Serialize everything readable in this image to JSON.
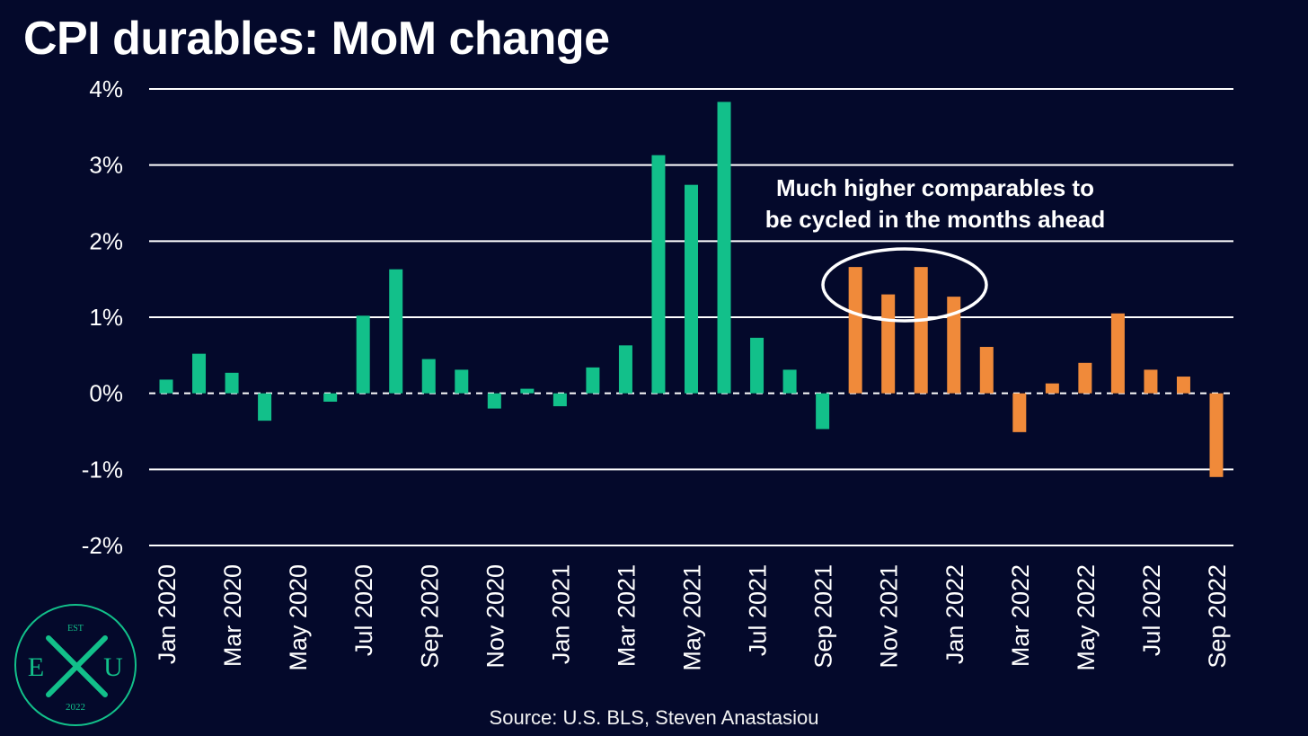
{
  "title": "CPI durables: MoM change",
  "source": "Source: U.S. BLS, Steven Anastasiou",
  "annotation": {
    "line1": "Much higher comparables to",
    "line2": "be cycled in the months ahead"
  },
  "logo": {
    "top": "EST",
    "left": "E",
    "right": "U",
    "bottom": "2022",
    "mark": "x-mark-icon"
  },
  "colors": {
    "background": "#04092b",
    "green": "#12c08a",
    "orange": "#f08a3a",
    "grid": "#ffffff",
    "text": "#ffffff"
  },
  "chart_data": {
    "type": "bar",
    "categories": [
      "Jan 2020",
      "Feb 2020",
      "Mar 2020",
      "Apr 2020",
      "May 2020",
      "Jun 2020",
      "Jul 2020",
      "Aug 2020",
      "Sep 2020",
      "Oct 2020",
      "Nov 2020",
      "Dec 2020",
      "Jan 2021",
      "Feb 2021",
      "Mar 2021",
      "Apr 2021",
      "May 2021",
      "Jun 2021",
      "Jul 2021",
      "Aug 2021",
      "Sep 2021",
      "Oct 2021",
      "Nov 2021",
      "Dec 2021",
      "Jan 2022",
      "Feb 2022",
      "Mar 2022",
      "Apr 2022",
      "May 2022",
      "Jun 2022",
      "Jul 2022",
      "Aug 2022",
      "Sep 2022"
    ],
    "tick_labels": [
      "Jan 2020",
      "Mar 2020",
      "May 2020",
      "Jul 2020",
      "Sep 2020",
      "Nov 2020",
      "Jan 2021",
      "Mar 2021",
      "May 2021",
      "Jul 2021",
      "Sep 2021",
      "Nov 2021",
      "Jan 2022",
      "Mar 2022",
      "May 2022",
      "Jul 2022",
      "Sep 2022"
    ],
    "values": [
      0.18,
      0.52,
      0.27,
      -0.36,
      0.0,
      -0.11,
      1.02,
      1.63,
      0.45,
      0.31,
      -0.2,
      0.06,
      -0.17,
      0.34,
      0.63,
      3.13,
      2.74,
      3.83,
      0.73,
      0.31,
      -0.47,
      1.66,
      1.3,
      1.66,
      1.27,
      0.61,
      -0.51,
      0.13,
      0.4,
      1.05,
      0.31,
      0.22,
      -1.1
    ],
    "colors_by_index": [
      "green",
      "green",
      "green",
      "green",
      "green",
      "green",
      "green",
      "green",
      "green",
      "green",
      "green",
      "green",
      "green",
      "green",
      "green",
      "green",
      "green",
      "green",
      "green",
      "green",
      "green",
      "orange",
      "orange",
      "orange",
      "orange",
      "orange",
      "orange",
      "orange",
      "orange",
      "orange",
      "orange",
      "orange",
      "orange"
    ],
    "ylim": [
      -2,
      4
    ],
    "yticks": [
      -2,
      -1,
      0,
      1,
      2,
      3,
      4
    ],
    "ytick_labels": [
      "-2%",
      "-1%",
      "0%",
      "1%",
      "2%",
      "3%",
      "4%"
    ],
    "xlabel": "",
    "ylabel": "",
    "grid": true,
    "zero_line": "dashed"
  }
}
